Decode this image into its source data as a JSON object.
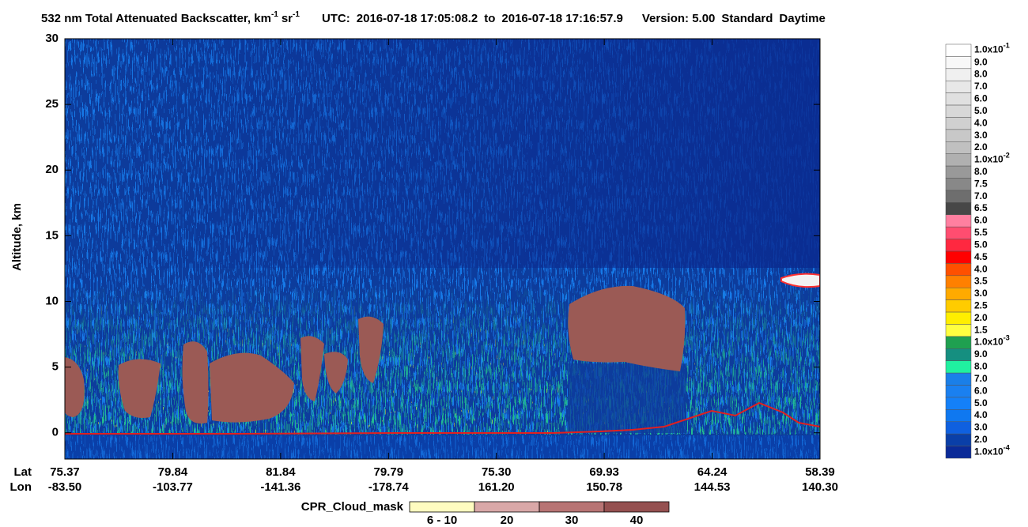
{
  "chart_data": {
    "type": "heatmap",
    "title": {
      "main": "532 nm Total Attenuated Backscatter, km",
      "sup1": "-1",
      "unit2": "sr",
      "sup2": "-1",
      "utc_label": "UTC:",
      "start": "2016-07-18 17:05:08.2",
      "to": "to",
      "end": "2016-07-18 17:16:57.9",
      "version": "Version: 5.00",
      "product": "Standard",
      "daytime": "Daytime"
    },
    "ylabel": "Altitude, km",
    "ylim": [
      -2,
      30
    ],
    "yticks": [
      0,
      5,
      10,
      15,
      20,
      25,
      30
    ],
    "x_axis": {
      "lat_label": "Lat",
      "lon_label": "Lon",
      "lat": [
        "75.37",
        "79.84",
        "81.84",
        "79.79",
        "75.30",
        "69.93",
        "64.24",
        "58.39"
      ],
      "lon": [
        "-83.50",
        "-103.77",
        "-141.36",
        "-178.74",
        "161.20",
        "150.78",
        "144.53",
        "140.30"
      ]
    },
    "colorbar": {
      "labels": [
        {
          "base": "1.0x10",
          "exp": "-1"
        },
        "9.0",
        "8.0",
        "7.0",
        "6.0",
        "5.0",
        "4.0",
        "3.0",
        "2.0",
        {
          "base": "1.0x10",
          "exp": "-2"
        },
        "8.0",
        "7.5",
        "7.0",
        "6.5",
        "6.0",
        "5.5",
        "5.0",
        "4.5",
        "4.0",
        "3.5",
        "3.0",
        "2.5",
        "2.0",
        "1.5",
        {
          "base": "1.0x10",
          "exp": "-3"
        },
        "9.0",
        "8.0",
        "7.0",
        "6.0",
        "5.0",
        "4.0",
        "3.0",
        "2.0",
        {
          "base": "1.0x10",
          "exp": "-4"
        }
      ],
      "colors": [
        "#ffffff",
        "#f8f8f8",
        "#f0f0f0",
        "#e8e8e8",
        "#e0e0e0",
        "#d8d8d8",
        "#d0d0d0",
        "#c8c8c8",
        "#c0c0c0",
        "#b0b0b0",
        "#999999",
        "#888888",
        "#6e6e6e",
        "#474747",
        "#ff7fa0",
        "#ff4d70",
        "#ff2840",
        "#ff0000",
        "#ff5000",
        "#ff8000",
        "#ffaa00",
        "#ffcc00",
        "#ffee00",
        "#ffff40",
        "#1fa050",
        "#158f80",
        "#20f0a0",
        "#1a7fe8",
        "#1a80f0",
        "#1480f8",
        "#0f78f0",
        "#0f60e0",
        "#0a3fa8",
        "#0a2a98"
      ]
    },
    "cloud_mask": {
      "title": "CPR_Cloud_mask",
      "labels": [
        "6 - 10",
        "20",
        "30",
        "40"
      ],
      "colors": [
        "#fffcc0",
        "#d9a8a8",
        "#b87474",
        "#955050"
      ]
    }
  }
}
